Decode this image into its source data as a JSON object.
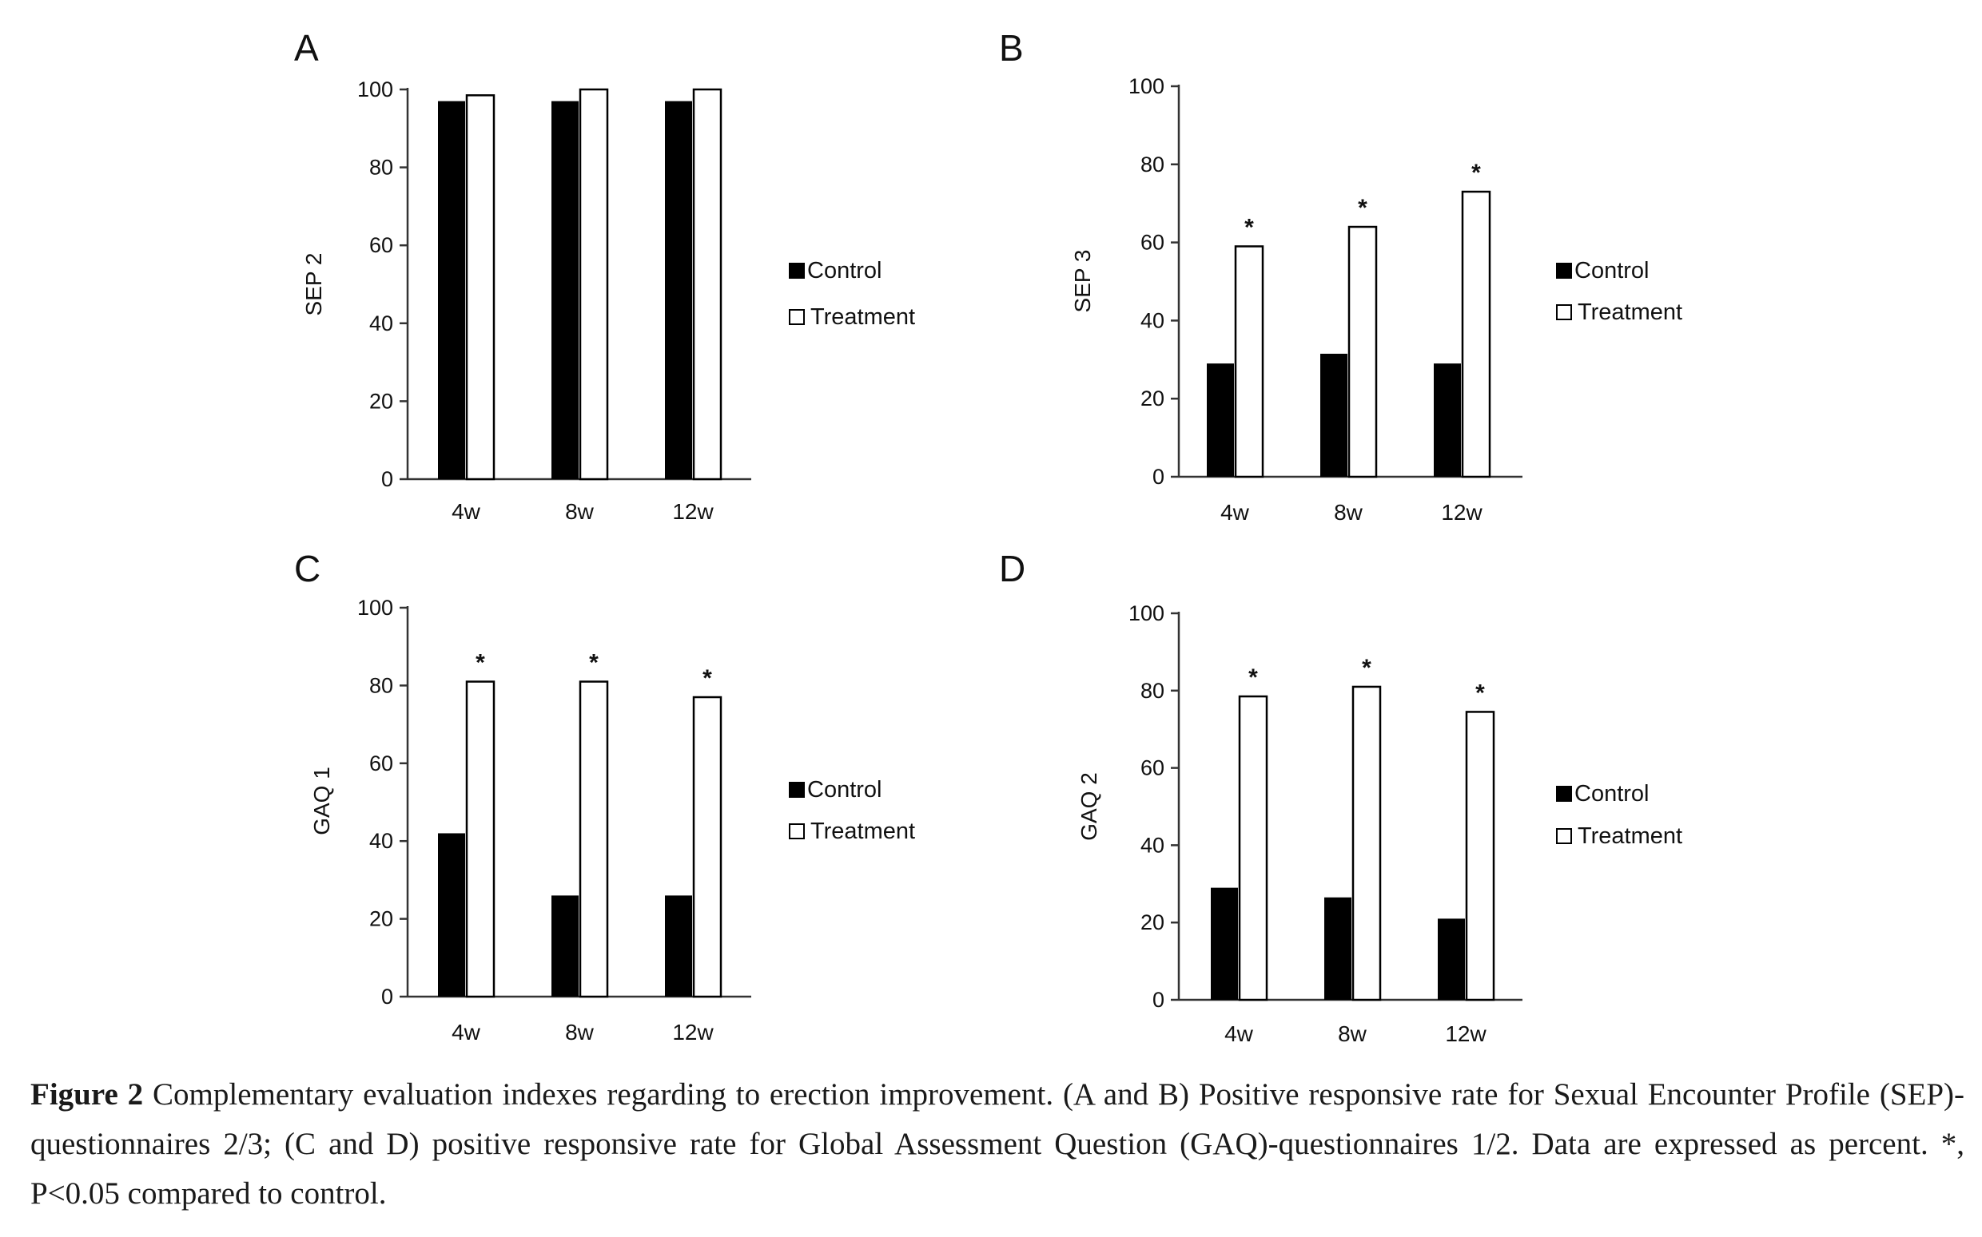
{
  "figure": {
    "caption_label": "Figure 2",
    "caption_text": " Complementary evaluation indexes regarding to erection improvement. (A and B) Positive responsive rate for Sexual Encounter Profile (SEP)-questionnaires 2/3; (C and D) positive responsive rate for Global Assessment Question (GAQ)-questionnaires 1/2. Data are expressed as percent. *, P<0.05 compared to control."
  },
  "colors": {
    "control": "#000000",
    "treatment": "#ffffff",
    "axis": "#333333"
  },
  "chart_data": [
    {
      "panel": "A",
      "type": "bar",
      "ylabel": "SEP 2",
      "ylim": [
        0,
        100
      ],
      "yticks": [
        "0",
        "20",
        "40",
        "60",
        "80",
        "100"
      ],
      "categories": [
        "4w",
        "8w",
        "12w"
      ],
      "series": [
        {
          "name": "Control",
          "values": [
            97,
            97,
            97
          ]
        },
        {
          "name": "Treatment",
          "values": [
            98.5,
            100,
            100
          ]
        }
      ],
      "significance": [
        false,
        false,
        false
      ],
      "star_symbol": "*",
      "legend": [
        "Control",
        "Treatment"
      ]
    },
    {
      "panel": "B",
      "type": "bar",
      "ylabel": "SEP 3",
      "ylim": [
        0,
        100
      ],
      "yticks": [
        "0",
        "20",
        "40",
        "60",
        "80",
        "100"
      ],
      "categories": [
        "4w",
        "8w",
        "12w"
      ],
      "series": [
        {
          "name": "Control",
          "values": [
            29,
            31.5,
            29
          ]
        },
        {
          "name": "Treatment",
          "values": [
            59,
            64,
            73
          ]
        }
      ],
      "significance": [
        true,
        true,
        true
      ],
      "star_symbol": "*",
      "legend": [
        "Control",
        "Treatment"
      ]
    },
    {
      "panel": "C",
      "type": "bar",
      "ylabel": "GAQ 1",
      "ylim": [
        0,
        100
      ],
      "yticks": [
        "0",
        "20",
        "40",
        "60",
        "80",
        "100"
      ],
      "categories": [
        "4w",
        "8w",
        "12w"
      ],
      "series": [
        {
          "name": "Control",
          "values": [
            42,
            26,
            26
          ]
        },
        {
          "name": "Treatment",
          "values": [
            81,
            81,
            77
          ]
        }
      ],
      "significance": [
        true,
        true,
        true
      ],
      "star_symbol": "*",
      "legend": [
        "Control",
        "Treatment"
      ]
    },
    {
      "panel": "D",
      "type": "bar",
      "ylabel": "GAQ 2",
      "ylim": [
        0,
        100
      ],
      "yticks": [
        "0",
        "20",
        "40",
        "60",
        "80",
        "100"
      ],
      "categories": [
        "4w",
        "8w",
        "12w"
      ],
      "series": [
        {
          "name": "Control",
          "values": [
            29,
            26.5,
            21
          ]
        },
        {
          "name": "Treatment",
          "values": [
            78.5,
            81,
            74.5
          ]
        }
      ],
      "significance": [
        true,
        true,
        true
      ],
      "star_symbol": "*",
      "legend": [
        "Control",
        "Treatment"
      ]
    }
  ]
}
